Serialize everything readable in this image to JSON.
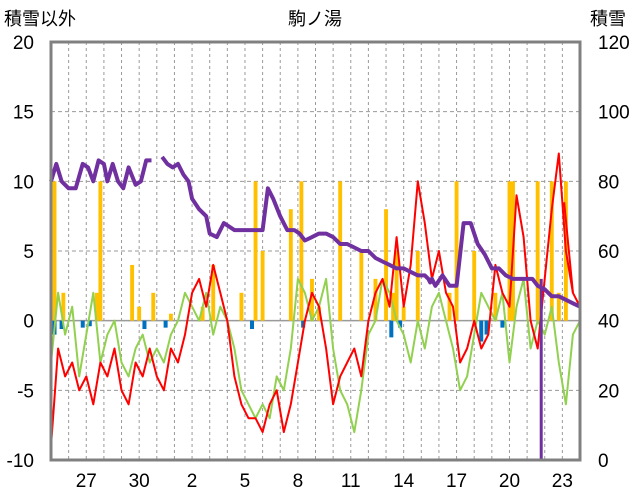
{
  "chart_data": {
    "type": "line",
    "title": "駒ノ湯",
    "y_left_label": "積雪以外",
    "y_right_label": "積雪",
    "ylim_left": [
      -10,
      20
    ],
    "ylim_right": [
      0,
      120
    ],
    "yticks_left": [
      "20",
      "15",
      "10",
      "5",
      "0",
      "-5",
      "-10"
    ],
    "yticks_right": [
      "120",
      "100",
      "80",
      "60",
      "40",
      "20",
      "0"
    ],
    "x_tick_labels": [
      "27",
      "30",
      "2",
      "5",
      "8",
      "11",
      "14",
      "17",
      "20",
      "23"
    ],
    "x_day_range": [
      0,
      30
    ],
    "x_tick_days": [
      2,
      5,
      8,
      11,
      14,
      17,
      20,
      23,
      26,
      29
    ],
    "grid": true,
    "colors": {
      "frame": "#808080",
      "grid": "#9a9a9a",
      "snow_depth": "#7030a0",
      "max_temp": "#ff0000",
      "min_temp": "#92d050",
      "precip": "#ffc000",
      "snowfall": "#0070c0"
    },
    "series": [
      {
        "key": "snow_depth",
        "axis": "right",
        "x": [
          0,
          0.3,
          0.6,
          1,
          1.4,
          1.8,
          2.1,
          2.4,
          2.7,
          3,
          3.2,
          3.5,
          3.8,
          4.1,
          4.4,
          4.8,
          5.1,
          5.4,
          5.7,
          6.0,
          6.3,
          6.6,
          6.9,
          7.2,
          7.5,
          7.8,
          8.0,
          8.4,
          8.8,
          9.0,
          9.4,
          9.8,
          10.1,
          10.4,
          10.8,
          11.2,
          11.6,
          12.0,
          12.3,
          12.6,
          13.0,
          13.4,
          13.8,
          14.1,
          14.4,
          14.8,
          15.2,
          15.6,
          16.0,
          16.4,
          16.8,
          17.2,
          17.6,
          18.0,
          18.4,
          18.8,
          19.2,
          19.6,
          20.0,
          20.4,
          20.8,
          21.2,
          21.4,
          21.5,
          21.6,
          21.7,
          21.8,
          22.2,
          22.6,
          23.0,
          23.4,
          23.8,
          24.2,
          24.6,
          25.0,
          25.4,
          25.8,
          26.2,
          26.6,
          27.0,
          27.3,
          27.6,
          28.0,
          28.4,
          28.8,
          29.2,
          29.6,
          30.0
        ],
        "y": [
          80,
          85,
          80,
          78,
          78,
          85,
          84,
          80,
          86,
          85,
          80,
          85,
          80,
          78,
          84,
          79,
          80,
          86,
          86,
          null,
          87,
          85,
          84,
          85,
          82,
          80,
          75,
          72,
          70,
          65,
          64,
          68,
          67,
          66,
          66,
          66,
          66,
          66,
          78,
          75,
          70,
          66,
          66,
          65,
          63,
          64,
          65,
          65,
          64,
          62,
          62,
          61,
          60,
          60,
          58,
          57,
          56,
          55,
          55,
          54,
          53,
          53,
          52,
          51,
          52,
          51,
          50,
          53,
          50,
          50,
          68,
          68,
          62,
          59,
          55,
          55,
          53,
          52,
          52,
          52,
          52,
          50,
          49,
          47,
          47,
          46,
          45,
          44
        ],
        "dropouts": [
          {
            "x": 27.8,
            "y_from": 52,
            "y_to": 0
          }
        ]
      },
      {
        "key": "max_temp",
        "axis": "left",
        "x": [
          0,
          0.4,
          0.8,
          1.2,
          1.6,
          2.0,
          2.4,
          2.8,
          3.2,
          3.6,
          4.0,
          4.4,
          4.8,
          5.2,
          5.6,
          6.0,
          6.4,
          6.8,
          7.2,
          7.6,
          8.0,
          8.4,
          8.8,
          9.2,
          9.6,
          10.0,
          10.4,
          10.8,
          11.2,
          11.6,
          12.0,
          12.4,
          12.8,
          13.2,
          13.6,
          14.0,
          14.4,
          14.8,
          15.2,
          15.6,
          16.0,
          16.4,
          16.8,
          17.2,
          17.6,
          18.0,
          18.4,
          18.8,
          19.2,
          19.6,
          20.0,
          20.4,
          20.8,
          21.2,
          21.6,
          22.0,
          22.4,
          22.8,
          23.2,
          23.6,
          24.0,
          24.4,
          24.8,
          25.2,
          25.6,
          26.0,
          26.4,
          26.8,
          27.2,
          27.6,
          28.0,
          28.4,
          28.8,
          29.2,
          29.6,
          30.0
        ],
        "y": [
          -9,
          -2,
          -4,
          -3,
          -5,
          -4,
          -6,
          -3,
          -4,
          -2,
          -5,
          -6,
          -3,
          -4,
          -2,
          -4,
          -5,
          -2,
          -3,
          -1,
          2,
          3,
          1,
          4,
          2,
          0,
          -4,
          -6,
          -7,
          -7,
          -8,
          -6,
          -5,
          -8,
          -6,
          -3,
          0,
          2,
          1,
          -2,
          -6,
          -4,
          -3,
          -2,
          -4,
          0,
          2,
          3,
          1,
          6,
          1,
          4,
          10,
          7,
          3,
          5,
          2,
          1,
          -3,
          -2,
          0,
          -2,
          -1,
          4,
          2,
          1,
          9,
          6,
          0,
          -2,
          3,
          8,
          12,
          5,
          2,
          1
        ],
        "extra": [
          {
            "x": 29.1,
            "y": 8.5
          },
          {
            "x": 29.6,
            "y": 2
          }
        ]
      },
      {
        "key": "min_temp",
        "axis": "left",
        "x": [
          0,
          0.4,
          0.8,
          1.2,
          1.6,
          2.0,
          2.4,
          2.8,
          3.2,
          3.6,
          4.0,
          4.4,
          4.8,
          5.2,
          5.6,
          6.0,
          6.4,
          6.8,
          7.2,
          7.6,
          8.0,
          8.4,
          8.8,
          9.2,
          9.6,
          10.0,
          10.4,
          10.8,
          11.2,
          11.6,
          12.0,
          12.4,
          12.8,
          13.2,
          13.6,
          14.0,
          14.4,
          14.8,
          15.2,
          15.6,
          16.0,
          16.4,
          16.8,
          17.2,
          17.6,
          18.0,
          18.4,
          18.8,
          19.2,
          19.6,
          20.0,
          20.4,
          20.8,
          21.2,
          21.6,
          22.0,
          22.4,
          22.8,
          23.2,
          23.6,
          24.0,
          24.4,
          24.8,
          25.2,
          25.6,
          26.0,
          26.4,
          26.8,
          27.2,
          27.6,
          28.0,
          28.4,
          28.8,
          29.2,
          29.6,
          30.0
        ],
        "y": [
          -3,
          2,
          -1,
          1,
          -4,
          -1,
          2,
          -3,
          -1,
          0,
          -3,
          -4,
          -2,
          -1,
          -3,
          -2,
          -3,
          -1,
          0,
          2,
          1,
          0,
          2,
          -1,
          1,
          0,
          -2,
          -5,
          -6,
          -7,
          -6,
          -7,
          -4,
          -5,
          -2,
          3,
          2,
          0,
          1,
          3,
          -2,
          -5,
          -6,
          -8,
          -5,
          -1,
          0,
          3,
          2,
          0,
          -1,
          -3,
          0,
          -2,
          1,
          2,
          0,
          -2,
          -5,
          -4,
          -1,
          2,
          1,
          0,
          2,
          -3,
          1,
          3,
          -2,
          0,
          -1,
          1,
          -3,
          -6,
          -1,
          0
        ],
        "extra": []
      },
      {
        "key": "precip",
        "axis": "left",
        "bars": [
          {
            "x": 0.2,
            "top": 10
          },
          {
            "x": 0.7,
            "top": 2
          },
          {
            "x": 2.6,
            "top": 2
          },
          {
            "x": 2.8,
            "top": 10
          },
          {
            "x": 4.6,
            "top": 4
          },
          {
            "x": 5.0,
            "top": 1
          },
          {
            "x": 5.8,
            "top": 2
          },
          {
            "x": 6.8,
            "top": 0.5
          },
          {
            "x": 8.6,
            "top": 1
          },
          {
            "x": 9.2,
            "top": 4
          },
          {
            "x": 10.8,
            "top": 2
          },
          {
            "x": 11.6,
            "top": 10
          },
          {
            "x": 12.0,
            "top": 5
          },
          {
            "x": 13.6,
            "top": 8
          },
          {
            "x": 14.2,
            "top": 10
          },
          {
            "x": 14.8,
            "top": 3
          },
          {
            "x": 15.2,
            "top": 1
          },
          {
            "x": 16.4,
            "top": 10
          },
          {
            "x": 17.6,
            "top": 5
          },
          {
            "x": 18.4,
            "top": 3
          },
          {
            "x": 19.0,
            "top": 8
          },
          {
            "x": 19.4,
            "top": 2
          },
          {
            "x": 19.6,
            "top": 5
          },
          {
            "x": 20.0,
            "top": 1
          },
          {
            "x": 20.8,
            "top": 5
          },
          {
            "x": 22.6,
            "top": 2
          },
          {
            "x": 23.0,
            "top": 10
          },
          {
            "x": 24.0,
            "top": 5
          },
          {
            "x": 25.2,
            "top": 2
          },
          {
            "x": 26.0,
            "top": 10
          },
          {
            "x": 26.2,
            "top": 10
          },
          {
            "x": 27.6,
            "top": 10
          },
          {
            "x": 28.4,
            "top": 10
          },
          {
            "x": 28.8,
            "top": 2
          },
          {
            "x": 29.2,
            "top": 10
          }
        ]
      },
      {
        "key": "snowfall",
        "axis": "left",
        "bars": [
          {
            "x": 0.2,
            "bottom": -1
          },
          {
            "x": 0.6,
            "bottom": -0.6
          },
          {
            "x": 1.8,
            "bottom": -0.5
          },
          {
            "x": 2.2,
            "bottom": -0.4
          },
          {
            "x": 5.3,
            "bottom": -0.6
          },
          {
            "x": 6.5,
            "bottom": -0.5
          },
          {
            "x": 11.4,
            "bottom": -0.6
          },
          {
            "x": 14.3,
            "bottom": -0.5
          },
          {
            "x": 19.3,
            "bottom": -1.2
          },
          {
            "x": 19.8,
            "bottom": -0.5
          },
          {
            "x": 24.4,
            "bottom": -1.5
          },
          {
            "x": 24.7,
            "bottom": -1.0
          },
          {
            "x": 25.6,
            "bottom": -0.5
          }
        ]
      }
    ]
  }
}
